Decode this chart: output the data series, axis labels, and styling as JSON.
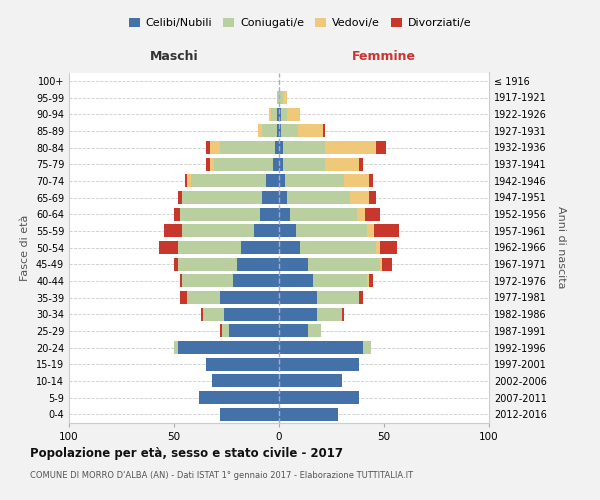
{
  "age_groups": [
    "0-4",
    "5-9",
    "10-14",
    "15-19",
    "20-24",
    "25-29",
    "30-34",
    "35-39",
    "40-44",
    "45-49",
    "50-54",
    "55-59",
    "60-64",
    "65-69",
    "70-74",
    "75-79",
    "80-84",
    "85-89",
    "90-94",
    "95-99",
    "100+"
  ],
  "birth_years": [
    "2012-2016",
    "2007-2011",
    "2002-2006",
    "1997-2001",
    "1992-1996",
    "1987-1991",
    "1982-1986",
    "1977-1981",
    "1972-1976",
    "1967-1971",
    "1962-1966",
    "1957-1961",
    "1952-1956",
    "1947-1951",
    "1942-1946",
    "1937-1941",
    "1932-1936",
    "1927-1931",
    "1922-1926",
    "1917-1921",
    "≤ 1916"
  ],
  "maschi_celibi": [
    28,
    38,
    32,
    35,
    48,
    24,
    26,
    28,
    22,
    20,
    18,
    12,
    9,
    8,
    6,
    3,
    2,
    1,
    1,
    0,
    0
  ],
  "maschi_coniugati": [
    0,
    0,
    0,
    0,
    2,
    3,
    10,
    16,
    24,
    28,
    30,
    34,
    38,
    38,
    36,
    28,
    26,
    7,
    3,
    1,
    0
  ],
  "maschi_vedovi": [
    0,
    0,
    0,
    0,
    0,
    0,
    0,
    0,
    0,
    0,
    0,
    0,
    0,
    0,
    2,
    2,
    5,
    2,
    1,
    0,
    0
  ],
  "maschi_divorziati": [
    0,
    0,
    0,
    0,
    0,
    1,
    1,
    3,
    1,
    2,
    9,
    9,
    3,
    2,
    1,
    2,
    2,
    0,
    0,
    0,
    0
  ],
  "femmine_nubili": [
    28,
    38,
    30,
    38,
    40,
    14,
    18,
    18,
    16,
    14,
    10,
    8,
    5,
    4,
    3,
    2,
    2,
    1,
    1,
    0,
    0
  ],
  "femmine_coniugate": [
    0,
    0,
    0,
    0,
    4,
    6,
    12,
    20,
    26,
    34,
    36,
    34,
    32,
    30,
    28,
    20,
    20,
    8,
    3,
    2,
    0
  ],
  "femmine_vedove": [
    0,
    0,
    0,
    0,
    0,
    0,
    0,
    0,
    1,
    1,
    2,
    3,
    4,
    9,
    12,
    16,
    24,
    12,
    6,
    2,
    0
  ],
  "femmine_divorziate": [
    0,
    0,
    0,
    0,
    0,
    0,
    1,
    2,
    2,
    5,
    8,
    12,
    7,
    3,
    2,
    2,
    5,
    1,
    0,
    0,
    0
  ],
  "colors": {
    "celibi": "#4472a8",
    "coniugati": "#b9cfa0",
    "vedovi": "#f0c87a",
    "divorziati": "#c8372c"
  },
  "xlim": 100,
  "title": "Popolazione per età, sesso e stato civile - 2017",
  "subtitle": "COMUNE DI MORRO D'ALBA (AN) - Dati ISTAT 1° gennaio 2017 - Elaborazione TUTTITALIA.IT",
  "ylabel_left": "Fasce di età",
  "ylabel_right": "Anni di nascita",
  "label_maschi": "Maschi",
  "label_femmine": "Femmine",
  "legend_labels": [
    "Celibi/Nubili",
    "Coniugati/e",
    "Vedovi/e",
    "Divorziati/e"
  ],
  "bg_color": "#f2f2f2",
  "plot_bg_color": "#ffffff",
  "grid_color": "#cccccc",
  "center_line_color": "#aaaacc"
}
